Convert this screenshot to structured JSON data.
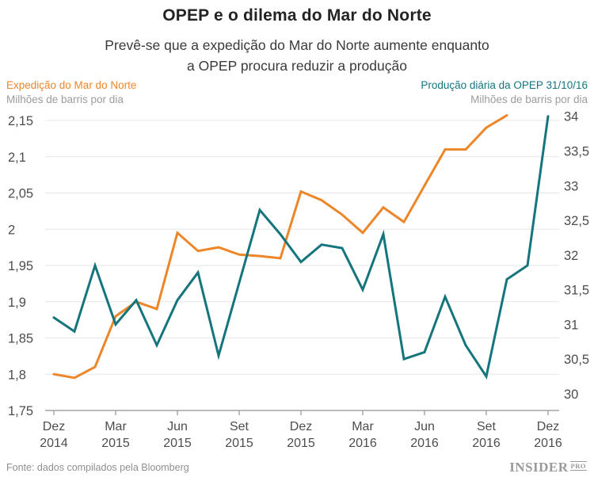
{
  "header": {
    "title": "OPEP e o dilema do Mar do Norte",
    "subtitle_line1": "Prevê-se que a expedição do Mar do Norte aumente enquanto",
    "subtitle_line2": "a OPEP procura reduzir a produção"
  },
  "legend": {
    "left": {
      "series_label": "Expedição do Mar do Norte",
      "unit_label": "Milhões de barris por dia"
    },
    "right": {
      "series_label": "Produção diária da OPEP 31/10/16",
      "unit_label": "Milhões de barris por dia"
    }
  },
  "footer": {
    "source": "Fonte: dados compilados pela Bloomberg",
    "logo_main": "INSIDER",
    "logo_pro": "PRO"
  },
  "colors": {
    "north_sea_orange": "#ed8629",
    "opec_teal": "#15757d",
    "grid": "#e6e6e6",
    "axis": "#a3a3a3",
    "tick_text": "#4d4d4d"
  },
  "chart_data": {
    "type": "line",
    "title": "OPEP e o dilema do Mar do Norte",
    "x_unit": "months from Dez 2014 to Dez 2016",
    "x_tick_labels": [
      {
        "month_index": 0,
        "line1": "Dez",
        "line2": "2014"
      },
      {
        "month_index": 3,
        "line1": "Mar",
        "line2": "2015"
      },
      {
        "month_index": 6,
        "line1": "Jun",
        "line2": "2015"
      },
      {
        "month_index": 9,
        "line1": "Set",
        "line2": "2015"
      },
      {
        "month_index": 12,
        "line1": "Dez",
        "line2": "2015"
      },
      {
        "month_index": 15,
        "line1": "Mar",
        "line2": "2016"
      },
      {
        "month_index": 18,
        "line1": "Jun",
        "line2": "2016"
      },
      {
        "month_index": 21,
        "line1": "Set",
        "line2": "2016"
      },
      {
        "month_index": 24,
        "line1": "Dez",
        "line2": "2016"
      }
    ],
    "grid": true,
    "legend_position": "top",
    "left_axis": {
      "label": "Expedição do Mar do Norte — Milhões de barris por dia",
      "range": [
        1.75,
        2.15
      ],
      "ticks": [
        {
          "value": 2.15,
          "label": "2,15"
        },
        {
          "value": 2.1,
          "label": "2,1"
        },
        {
          "value": 2.05,
          "label": "2,05"
        },
        {
          "value": 2,
          "label": "2"
        },
        {
          "value": 1.95,
          "label": "1,95"
        },
        {
          "value": 1.9,
          "label": "1,9"
        },
        {
          "value": 1.85,
          "label": "1,85"
        },
        {
          "value": 1.8,
          "label": "1,8"
        },
        {
          "value": 1.75,
          "label": "1,75"
        }
      ]
    },
    "right_axis": {
      "label": "Produção diária da OPEP — Milhões de barris por dia",
      "range": [
        29.76,
        33.94
      ],
      "ticks": [
        {
          "value": 34,
          "label": "34"
        },
        {
          "value": 33.5,
          "label": "33,5"
        },
        {
          "value": 33,
          "label": "33"
        },
        {
          "value": 32.5,
          "label": "32,5"
        },
        {
          "value": 32,
          "label": "32"
        },
        {
          "value": 31.5,
          "label": "31,5"
        },
        {
          "value": 31,
          "label": "31"
        },
        {
          "value": 30.5,
          "label": "30,5"
        },
        {
          "value": 30,
          "label": "30"
        }
      ]
    },
    "series": [
      {
        "name": "Expedição do Mar do Norte",
        "axis": "left",
        "color": "#ed8629",
        "start_month_index": 0,
        "values": [
          1.8,
          1.795,
          1.81,
          1.88,
          1.9,
          1.89,
          1.995,
          1.97,
          1.975,
          1.965,
          1.963,
          1.96,
          2.052,
          2.04,
          2.02,
          1.995,
          2.03,
          2.01,
          2.06,
          2.11,
          2.11,
          2.14,
          2.157
        ]
      },
      {
        "name": "Produção diária da OPEP",
        "axis": "right",
        "color": "#15757d",
        "start_month_index": 0,
        "values": [
          31.1,
          30.9,
          31.85,
          31.0,
          31.35,
          30.7,
          31.35,
          31.75,
          30.55,
          31.6,
          32.65,
          32.3,
          31.9,
          32.15,
          32.1,
          31.5,
          32.3,
          30.5,
          30.6,
          31.4,
          30.7,
          30.25,
          31.65,
          31.85,
          34.0
        ]
      }
    ]
  }
}
